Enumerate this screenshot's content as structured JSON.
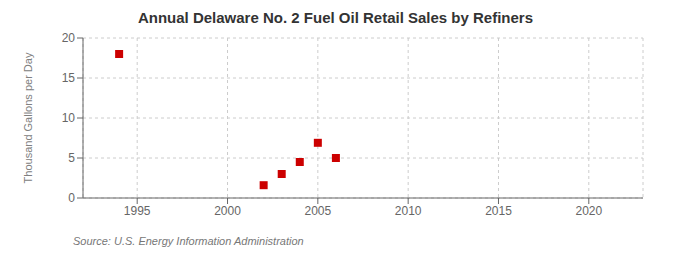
{
  "chart_data": {
    "type": "scatter",
    "title": "Annual Delaware No. 2 Fuel Oil Retail Sales by Refiners",
    "y_label": "Thousand Gallons per Day",
    "annotations": [
      "Source: U.S. Energy Information Administration"
    ],
    "x": [
      1994,
      2002,
      2003,
      2004,
      2005,
      2006
    ],
    "values": [
      18.0,
      1.6,
      3.0,
      4.5,
      6.9,
      5.0
    ],
    "color": "#cc0000",
    "marker": "square",
    "xlim": [
      1992,
      2023
    ],
    "ylim": [
      0,
      20
    ],
    "xticks": [
      1995,
      2000,
      2005,
      2010,
      2015,
      2020
    ],
    "yticks": [
      0,
      5,
      10,
      15,
      20
    ],
    "grid": true
  }
}
